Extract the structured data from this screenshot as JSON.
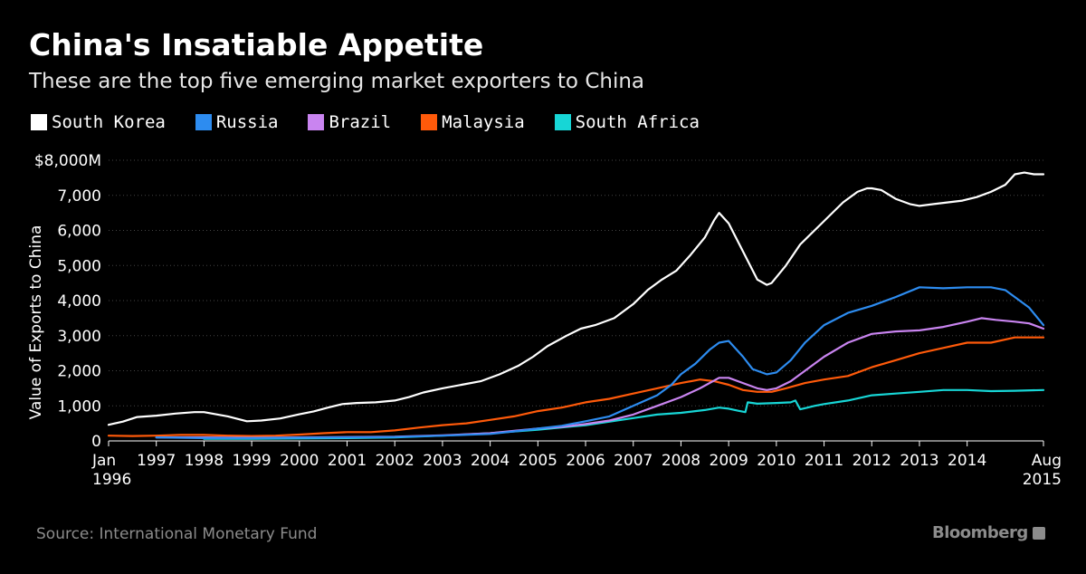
{
  "header": {
    "title": "China's Insatiable Appetite",
    "subtitle": "These are the top five emerging market exporters to China"
  },
  "legend": [
    {
      "name": "South Korea",
      "color": "#ffffff"
    },
    {
      "name": "Russia",
      "color": "#2d8cf0"
    },
    {
      "name": "Brazil",
      "color": "#c984f0"
    },
    {
      "name": "Malaysia",
      "color": "#ff5a0a"
    },
    {
      "name": "South Africa",
      "color": "#17d6d6"
    }
  ],
  "footer": {
    "source": "Source: International Monetary Fund",
    "brand": "Bloomberg"
  },
  "chart_data": {
    "type": "line",
    "title": "China's Insatiable Appetite",
    "subtitle": "These are the top five emerging market exporters to China",
    "ylabel": "Value of Exports to China",
    "xlabel": "",
    "xlim": [
      1996.0,
      2015.6
    ],
    "ylim": [
      0,
      8000
    ],
    "y_ticks": [
      {
        "value": 0,
        "label": "0"
      },
      {
        "value": 1000,
        "label": "1,000"
      },
      {
        "value": 2000,
        "label": "2,000"
      },
      {
        "value": 3000,
        "label": "3,000"
      },
      {
        "value": 4000,
        "label": "4,000"
      },
      {
        "value": 5000,
        "label": "5,000"
      },
      {
        "value": 6000,
        "label": "6,000"
      },
      {
        "value": 7000,
        "label": "7,000"
      },
      {
        "value": 8000,
        "label": "$8,000M"
      }
    ],
    "x_ticks": [
      {
        "value": 1996.0,
        "label": "Jan",
        "label2": "1996"
      },
      {
        "value": 1997.0,
        "label": "1997"
      },
      {
        "value": 1998.0,
        "label": "1998"
      },
      {
        "value": 1999.0,
        "label": "1999"
      },
      {
        "value": 2000.0,
        "label": "2000"
      },
      {
        "value": 2001.0,
        "label": "2001"
      },
      {
        "value": 2002.0,
        "label": "2002"
      },
      {
        "value": 2003.0,
        "label": "2003"
      },
      {
        "value": 2004.0,
        "label": "2004"
      },
      {
        "value": 2005.0,
        "label": "2005"
      },
      {
        "value": 2006.0,
        "label": "2006"
      },
      {
        "value": 2007.0,
        "label": "2007"
      },
      {
        "value": 2008.0,
        "label": "2008"
      },
      {
        "value": 2009.0,
        "label": "2009"
      },
      {
        "value": 2010.0,
        "label": "2010"
      },
      {
        "value": 2011.0,
        "label": "2011"
      },
      {
        "value": 2012.0,
        "label": "2012"
      },
      {
        "value": 2013.0,
        "label": "2013"
      },
      {
        "value": 2014.0,
        "label": "2014"
      },
      {
        "value": 2015.6,
        "label": "Aug",
        "label2": "2015"
      }
    ],
    "series": [
      {
        "name": "South Korea",
        "color": "#ffffff",
        "x": [
          1996.0,
          1996.3,
          1996.6,
          1997.0,
          1997.4,
          1997.8,
          1998.0,
          1998.5,
          1998.9,
          1999.2,
          1999.6,
          2000.0,
          2000.3,
          2000.6,
          2000.9,
          2001.2,
          2001.6,
          2002.0,
          2002.3,
          2002.6,
          2003.0,
          2003.4,
          2003.8,
          2004.2,
          2004.6,
          2004.9,
          2005.2,
          2005.6,
          2005.9,
          2006.2,
          2006.6,
          2007.0,
          2007.3,
          2007.6,
          2007.9,
          2008.2,
          2008.5,
          2008.7,
          2008.8,
          2009.0,
          2009.3,
          2009.6,
          2009.8,
          2009.9,
          2010.2,
          2010.5,
          2010.8,
          2011.1,
          2011.4,
          2011.7,
          2011.9,
          2012.0,
          2012.2,
          2012.5,
          2012.8,
          2013.0,
          2013.3,
          2013.6,
          2013.9,
          2014.2,
          2014.5,
          2014.8,
          2015.0,
          2015.2,
          2015.4,
          2015.6
        ],
        "values": [
          460,
          550,
          680,
          720,
          780,
          820,
          820,
          700,
          560,
          580,
          640,
          760,
          840,
          950,
          1050,
          1080,
          1100,
          1150,
          1250,
          1380,
          1500,
          1600,
          1700,
          1900,
          2150,
          2400,
          2700,
          3000,
          3200,
          3300,
          3500,
          3900,
          4300,
          4600,
          4850,
          5300,
          5800,
          6300,
          6500,
          6200,
          5400,
          4600,
          4450,
          4500,
          5000,
          5600,
          6000,
          6400,
          6800,
          7100,
          7200,
          7200,
          7150,
          6900,
          6750,
          6700,
          6750,
          6800,
          6850,
          6950,
          7100,
          7300,
          7600,
          7650,
          7600,
          7600
        ]
      },
      {
        "name": "Russia",
        "color": "#2d8cf0",
        "x": [
          1997.0,
          1998.0,
          1999.0,
          2000.0,
          2001.0,
          2002.0,
          2003.0,
          2004.0,
          2004.5,
          2005.0,
          2005.5,
          2006.0,
          2006.5,
          2007.0,
          2007.5,
          2007.8,
          2008.0,
          2008.3,
          2008.6,
          2008.8,
          2009.0,
          2009.3,
          2009.5,
          2009.8,
          2010.0,
          2010.3,
          2010.6,
          2011.0,
          2011.5,
          2012.0,
          2012.5,
          2013.0,
          2013.5,
          2014.0,
          2014.5,
          2014.8,
          2015.0,
          2015.3,
          2015.6
        ],
        "values": [
          100,
          80,
          80,
          90,
          100,
          110,
          150,
          200,
          270,
          350,
          430,
          560,
          700,
          1000,
          1300,
          1600,
          1900,
          2200,
          2600,
          2800,
          2850,
          2400,
          2050,
          1900,
          1950,
          2300,
          2800,
          3300,
          3650,
          3850,
          4100,
          4380,
          4350,
          4380,
          4380,
          4300,
          4100,
          3800,
          3300
        ]
      },
      {
        "name": "Brazil",
        "color": "#c984f0",
        "x": [
          1997.0,
          1998.0,
          1999.0,
          2000.0,
          2001.0,
          2002.0,
          2003.0,
          2004.0,
          2004.5,
          2005.0,
          2005.5,
          2006.0,
          2006.5,
          2007.0,
          2007.5,
          2008.0,
          2008.4,
          2008.8,
          2009.0,
          2009.3,
          2009.6,
          2009.8,
          2010.0,
          2010.3,
          2010.6,
          2011.0,
          2011.5,
          2012.0,
          2012.5,
          2013.0,
          2013.5,
          2014.0,
          2014.3,
          2014.6,
          2015.0,
          2015.3,
          2015.6
        ],
        "values": [
          100,
          100,
          90,
          100,
          110,
          120,
          160,
          220,
          290,
          350,
          400,
          480,
          580,
          750,
          1000,
          1250,
          1500,
          1800,
          1800,
          1650,
          1500,
          1450,
          1500,
          1700,
          2000,
          2400,
          2800,
          3050,
          3120,
          3150,
          3250,
          3400,
          3500,
          3450,
          3400,
          3350,
          3200
        ]
      },
      {
        "name": "Malaysia",
        "color": "#ff5a0a",
        "x": [
          1996.0,
          1996.5,
          1997.0,
          1997.5,
          1998.0,
          1998.5,
          1999.0,
          1999.5,
          2000.0,
          2000.5,
          2001.0,
          2001.5,
          2002.0,
          2002.5,
          2003.0,
          2003.5,
          2004.0,
          2004.5,
          2005.0,
          2005.5,
          2006.0,
          2006.5,
          2007.0,
          2007.5,
          2008.0,
          2008.4,
          2008.7,
          2009.0,
          2009.3,
          2009.6,
          2009.9,
          2010.2,
          2010.6,
          2011.0,
          2011.5,
          2012.0,
          2012.5,
          2013.0,
          2013.5,
          2014.0,
          2014.5,
          2015.0,
          2015.3,
          2015.6
        ],
        "values": [
          150,
          140,
          150,
          170,
          170,
          150,
          140,
          150,
          180,
          220,
          250,
          250,
          300,
          380,
          450,
          500,
          600,
          700,
          850,
          950,
          1100,
          1200,
          1350,
          1500,
          1650,
          1750,
          1700,
          1600,
          1450,
          1400,
          1400,
          1500,
          1650,
          1750,
          1850,
          2100,
          2300,
          2500,
          2650,
          2800,
          2800,
          2950,
          2950,
          2950
        ]
      },
      {
        "name": "South Africa",
        "color": "#17d6d6",
        "x": [
          1998.0,
          1999.0,
          2000.0,
          2001.0,
          2002.0,
          2003.0,
          2004.0,
          2005.0,
          2006.0,
          2007.0,
          2007.5,
          2008.0,
          2008.5,
          2008.8,
          2009.0,
          2009.2,
          2009.35,
          2009.4,
          2009.6,
          2010.0,
          2010.3,
          2010.4,
          2010.5,
          2010.8,
          2011.0,
          2011.5,
          2012.0,
          2012.5,
          2013.0,
          2013.5,
          2014.0,
          2014.5,
          2015.0,
          2015.6
        ],
        "values": [
          60,
          60,
          70,
          80,
          100,
          150,
          220,
          320,
          450,
          650,
          750,
          800,
          880,
          950,
          920,
          860,
          820,
          1100,
          1060,
          1080,
          1100,
          1150,
          900,
          1000,
          1050,
          1150,
          1300,
          1350,
          1400,
          1450,
          1450,
          1420,
          1430,
          1450
        ]
      }
    ]
  }
}
